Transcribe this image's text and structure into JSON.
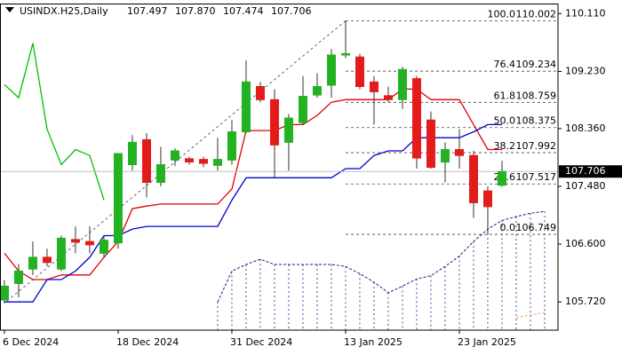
{
  "chart_data": {
    "type": "candlestick",
    "title": "USINDX.H25,Daily",
    "quote": [
      "107.497",
      "107.870",
      "107.474",
      "107.706"
    ],
    "xlim": [
      -0.31,
      38.94
    ],
    "ylim": [
      105.29,
      110.25
    ],
    "xticks": [
      {
        "value": 0,
        "label": "6 Dec 2024"
      },
      {
        "value": 8,
        "label": "18 Dec 2024"
      },
      {
        "value": 16,
        "label": "31 Dec 2024"
      },
      {
        "value": 24,
        "label": "13 Jan 2025"
      },
      {
        "value": 32,
        "label": "23 Jan 2025"
      }
    ],
    "yticks": [
      {
        "value": 110.11,
        "label": "110.110"
      },
      {
        "value": 109.23,
        "label": "109.230"
      },
      {
        "value": 108.36,
        "label": "108.360"
      },
      {
        "value": 107.48,
        "label": "107.480"
      },
      {
        "value": 106.6,
        "label": "106.600"
      },
      {
        "value": 105.72,
        "label": "105.720"
      }
    ],
    "up_color": "#22b222",
    "down_color": "#e41b1b",
    "open": [
      105.75,
      106.0,
      106.22,
      106.4,
      106.22,
      106.67,
      106.64,
      106.46,
      106.62,
      107.81,
      108.19,
      107.54,
      107.88,
      107.9,
      107.89,
      107.8,
      107.88,
      108.31,
      109.0,
      108.8,
      108.15,
      108.45,
      108.87,
      109.02,
      109.48,
      109.45,
      109.07,
      108.86,
      108.8,
      109.12,
      108.49,
      107.85,
      108.04,
      107.95,
      107.41,
      107.497
    ],
    "high": [
      106.05,
      106.3,
      106.64,
      106.53,
      106.73,
      106.87,
      106.87,
      106.73,
      107.98,
      108.26,
      108.29,
      108.08,
      108.06,
      107.93,
      107.93,
      108.22,
      108.49,
      109.4,
      109.07,
      108.96,
      108.58,
      109.16,
      109.2,
      109.57,
      110.002,
      109.5,
      109.16,
      109.0,
      109.3,
      109.16,
      108.62,
      108.15,
      108.35,
      108.02,
      107.48,
      107.87
    ],
    "low": [
      105.7,
      105.79,
      106.13,
      106.26,
      106.19,
      106.46,
      106.46,
      106.4,
      106.53,
      107.72,
      107.31,
      107.48,
      107.79,
      107.81,
      107.77,
      107.72,
      107.81,
      108.29,
      108.76,
      107.61,
      107.72,
      108.42,
      108.83,
      108.83,
      109.43,
      108.96,
      108.42,
      108.76,
      108.66,
      107.75,
      107.75,
      107.54,
      107.75,
      107.0,
      106.749,
      107.474
    ],
    "close": [
      105.96,
      106.19,
      106.4,
      106.32,
      106.69,
      106.63,
      106.59,
      106.66,
      107.98,
      108.15,
      107.54,
      107.81,
      108.02,
      107.85,
      107.83,
      107.89,
      108.31,
      109.07,
      108.8,
      108.11,
      108.52,
      108.85,
      109.0,
      109.48,
      109.5,
      109.0,
      108.92,
      108.8,
      109.26,
      107.91,
      107.77,
      108.04,
      107.95,
      107.23,
      107.17,
      107.706
    ],
    "lines": [
      {
        "color": "#00c000",
        "dash": "solid",
        "values": [
          109.03,
          108.83,
          109.66,
          108.35,
          107.81,
          108.04,
          107.95,
          107.27
        ]
      },
      {
        "color": "#e00000",
        "dash": "solid",
        "values": [
          106.46,
          106.19,
          106.06,
          106.06,
          106.13,
          106.13,
          106.13,
          106.4,
          106.64,
          107.14,
          107.18,
          107.21,
          107.21,
          107.21,
          107.21,
          107.21,
          107.44,
          108.33,
          108.33,
          108.33,
          108.42,
          108.42,
          108.56,
          108.76,
          108.8,
          108.8,
          108.8,
          108.8,
          108.96,
          108.96,
          108.8,
          108.8,
          108.8,
          108.42,
          108.04,
          108.04
        ]
      },
      {
        "color": "#0000d0",
        "dash": "solid",
        "values": [
          105.72,
          105.72,
          105.72,
          106.06,
          106.06,
          106.19,
          106.4,
          106.73,
          106.73,
          106.83,
          106.87,
          106.87,
          106.87,
          106.87,
          106.87,
          106.87,
          107.27,
          107.61,
          107.61,
          107.61,
          107.61,
          107.61,
          107.61,
          107.61,
          107.75,
          107.75,
          107.95,
          108.02,
          108.02,
          108.22,
          108.22,
          108.22,
          108.22,
          108.31,
          108.42,
          108.42
        ]
      },
      {
        "color": "#1c1c8c",
        "dash": "dotted",
        "cloud": true,
        "values": [
          null,
          null,
          null,
          null,
          null,
          null,
          null,
          null,
          null,
          null,
          null,
          null,
          null,
          null,
          null,
          105.72,
          106.19,
          106.29,
          106.37,
          106.29,
          106.29,
          106.29,
          106.29,
          106.29,
          106.26,
          106.15,
          106.02,
          105.86,
          105.96,
          106.07,
          106.12,
          106.26,
          106.42,
          106.64,
          106.83,
          106.96,
          107.02,
          107.07,
          107.1
        ]
      },
      {
        "color": "#f4a460",
        "dash": "dotted",
        "values": [
          null,
          null,
          null,
          null,
          null,
          null,
          null,
          null,
          null,
          null,
          null,
          null,
          null,
          null,
          null,
          null,
          null,
          null,
          null,
          null,
          null,
          null,
          null,
          null,
          null,
          null,
          null,
          null,
          null,
          null,
          null,
          null,
          null,
          null,
          null,
          null,
          105.48,
          105.52,
          105.56
        ]
      }
    ],
    "fibo": {
      "color": "#444444",
      "levels": [
        {
          "level": "100.0",
          "price": 110.002
        },
        {
          "level": "76.4",
          "price": 109.234
        },
        {
          "level": "61.8",
          "price": 108.759
        },
        {
          "level": "50.0",
          "price": 108.375
        },
        {
          "level": "38.2",
          "price": 107.992
        },
        {
          "level": "23.6",
          "price": 107.517
        },
        {
          "level": "0.0",
          "price": 106.749
        }
      ]
    },
    "last": 107.706
  }
}
